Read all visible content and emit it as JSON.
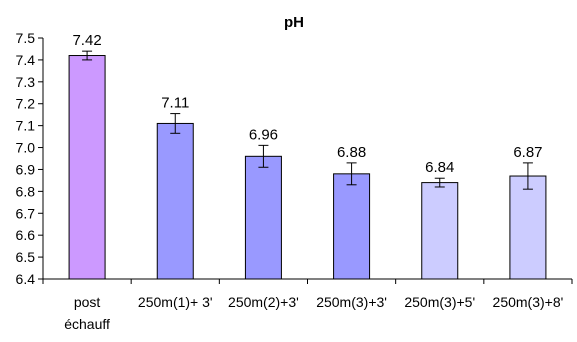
{
  "chart_data": {
    "type": "bar",
    "title": "pH",
    "xlabel": "",
    "ylabel": "",
    "ylim": [
      6.4,
      7.5
    ],
    "ytick_step": 0.1,
    "yticks": [
      "6.4",
      "6.5",
      "6.6",
      "6.7",
      "6.8",
      "6.9",
      "7.0",
      "7.1",
      "7.2",
      "7.3",
      "7.4",
      "7.5"
    ],
    "grid": false,
    "legend": "none",
    "categories": [
      [
        "post",
        "échauff"
      ],
      [
        "250m(1)+ 3'"
      ],
      [
        "250m(2)+3'"
      ],
      [
        "250m(3)+3'"
      ],
      [
        "250m(3)+5'"
      ],
      [
        "250m(3)+8'"
      ]
    ],
    "values": [
      7.42,
      7.11,
      6.96,
      6.88,
      6.84,
      6.87
    ],
    "value_labels": [
      "7.42",
      "7.11",
      "6.96",
      "6.88",
      "6.84",
      "6.87"
    ],
    "error": [
      0.02,
      0.045,
      0.05,
      0.05,
      0.02,
      0.06
    ],
    "bar_colors": [
      "#cc99ff",
      "#9999ff",
      "#9999ff",
      "#9999ff",
      "#ccccff",
      "#ccccff"
    ],
    "error_color": "#000000",
    "axis_color": "#000000"
  }
}
